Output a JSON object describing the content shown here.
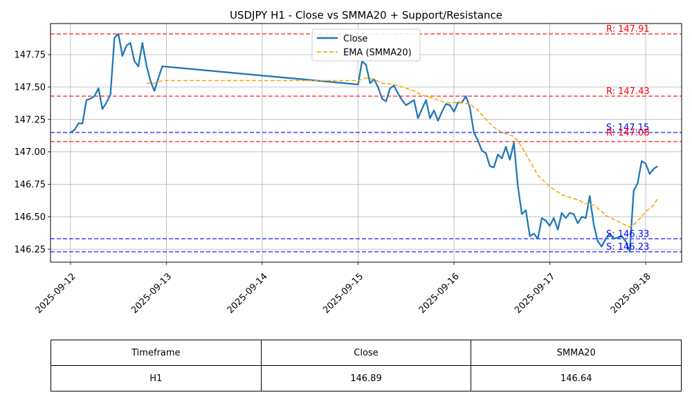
{
  "chart_data": {
    "type": "line",
    "title": "USDJPY H1 - Close vs SMMA20 + Support/Resistance",
    "xlabel": "",
    "ylabel": "",
    "ylim": [
      146.15,
      147.99
    ],
    "xlim": [
      "2025-09-11 19:00",
      "2025-09-18 09:00"
    ],
    "grid": true,
    "legend_position": "top-center",
    "x_ticks": [
      "2025-09-12",
      "2025-09-13",
      "2025-09-14",
      "2025-09-15",
      "2025-09-16",
      "2025-09-17",
      "2025-09-18"
    ],
    "y_ticks": [
      "146.25",
      "146.50",
      "146.75",
      "147.00",
      "147.25",
      "147.50",
      "147.75"
    ],
    "series": [
      {
        "name": "Close",
        "color": "#1f77b4",
        "points": [
          [
            "2025-09-12 00:00",
            147.15
          ],
          [
            "2025-09-12 01:00",
            147.17
          ],
          [
            "2025-09-12 02:00",
            147.22
          ],
          [
            "2025-09-12 03:00",
            147.22
          ],
          [
            "2025-09-12 04:00",
            147.4
          ],
          [
            "2025-09-12 05:00",
            147.41
          ],
          [
            "2025-09-12 06:00",
            147.43
          ],
          [
            "2025-09-12 07:00",
            147.49
          ],
          [
            "2025-09-12 08:00",
            147.33
          ],
          [
            "2025-09-12 09:00",
            147.38
          ],
          [
            "2025-09-12 10:00",
            147.44
          ],
          [
            "2025-09-12 11:00",
            147.88
          ],
          [
            "2025-09-12 12:00",
            147.91
          ],
          [
            "2025-09-12 13:00",
            147.74
          ],
          [
            "2025-09-12 14:00",
            147.82
          ],
          [
            "2025-09-12 15:00",
            147.84
          ],
          [
            "2025-09-12 16:00",
            147.7
          ],
          [
            "2025-09-12 17:00",
            147.66
          ],
          [
            "2025-09-12 18:00",
            147.84
          ],
          [
            "2025-09-12 19:00",
            147.67
          ],
          [
            "2025-09-12 20:00",
            147.55
          ],
          [
            "2025-09-12 21:00",
            147.47
          ],
          [
            "2025-09-12 22:00",
            147.57
          ],
          [
            "2025-09-12 23:00",
            147.66
          ],
          [
            "2025-09-15 00:00",
            147.52
          ],
          [
            "2025-09-15 01:00",
            147.7
          ],
          [
            "2025-09-15 02:00",
            147.67
          ],
          [
            "2025-09-15 03:00",
            147.53
          ],
          [
            "2025-09-15 04:00",
            147.56
          ],
          [
            "2025-09-15 05:00",
            147.5
          ],
          [
            "2025-09-15 06:00",
            147.41
          ],
          [
            "2025-09-15 07:00",
            147.39
          ],
          [
            "2025-09-15 08:00",
            147.49
          ],
          [
            "2025-09-15 09:00",
            147.51
          ],
          [
            "2025-09-15 10:00",
            147.45
          ],
          [
            "2025-09-15 11:00",
            147.4
          ],
          [
            "2025-09-15 12:00",
            147.36
          ],
          [
            "2025-09-15 13:00",
            147.38
          ],
          [
            "2025-09-15 14:00",
            147.4
          ],
          [
            "2025-09-15 15:00",
            147.26
          ],
          [
            "2025-09-15 16:00",
            147.33
          ],
          [
            "2025-09-15 17:00",
            147.4
          ],
          [
            "2025-09-15 18:00",
            147.26
          ],
          [
            "2025-09-15 19:00",
            147.32
          ],
          [
            "2025-09-15 20:00",
            147.24
          ],
          [
            "2025-09-15 21:00",
            147.31
          ],
          [
            "2025-09-15 22:00",
            147.37
          ],
          [
            "2025-09-15 23:00",
            147.36
          ],
          [
            "2025-09-16 00:00",
            147.31
          ],
          [
            "2025-09-16 01:00",
            147.38
          ],
          [
            "2025-09-16 02:00",
            147.38
          ],
          [
            "2025-09-16 03:00",
            147.43
          ],
          [
            "2025-09-16 04:00",
            147.34
          ],
          [
            "2025-09-16 05:00",
            147.15
          ],
          [
            "2025-09-16 06:00",
            147.09
          ],
          [
            "2025-09-16 07:00",
            147.01
          ],
          [
            "2025-09-16 08:00",
            146.99
          ],
          [
            "2025-09-16 09:00",
            146.89
          ],
          [
            "2025-09-16 10:00",
            146.88
          ],
          [
            "2025-09-16 11:00",
            146.98
          ],
          [
            "2025-09-16 12:00",
            146.95
          ],
          [
            "2025-09-16 13:00",
            147.04
          ],
          [
            "2025-09-16 14:00",
            146.94
          ],
          [
            "2025-09-16 15:00",
            147.07
          ],
          [
            "2025-09-16 16:00",
            146.74
          ],
          [
            "2025-09-16 17:00",
            146.52
          ],
          [
            "2025-09-16 18:00",
            146.55
          ],
          [
            "2025-09-16 19:00",
            146.35
          ],
          [
            "2025-09-16 20:00",
            146.37
          ],
          [
            "2025-09-16 21:00",
            146.33
          ],
          [
            "2025-09-16 22:00",
            146.49
          ],
          [
            "2025-09-16 23:00",
            146.47
          ],
          [
            "2025-09-17 00:00",
            146.43
          ],
          [
            "2025-09-17 01:00",
            146.49
          ],
          [
            "2025-09-17 02:00",
            146.4
          ],
          [
            "2025-09-17 03:00",
            146.53
          ],
          [
            "2025-09-17 04:00",
            146.49
          ],
          [
            "2025-09-17 05:00",
            146.53
          ],
          [
            "2025-09-17 06:00",
            146.52
          ],
          [
            "2025-09-17 07:00",
            146.45
          ],
          [
            "2025-09-17 08:00",
            146.5
          ],
          [
            "2025-09-17 09:00",
            146.49
          ],
          [
            "2025-09-17 10:00",
            146.66
          ],
          [
            "2025-09-17 11:00",
            146.44
          ],
          [
            "2025-09-17 12:00",
            146.31
          ],
          [
            "2025-09-17 13:00",
            146.27
          ],
          [
            "2025-09-17 14:00",
            146.33
          ],
          [
            "2025-09-17 15:00",
            146.37
          ],
          [
            "2025-09-17 16:00",
            146.33
          ],
          [
            "2025-09-17 17:00",
            146.34
          ],
          [
            "2025-09-17 18:00",
            146.35
          ],
          [
            "2025-09-17 19:00",
            146.31
          ],
          [
            "2025-09-17 20:00",
            146.23
          ],
          [
            "2025-09-17 21:00",
            146.7
          ],
          [
            "2025-09-17 22:00",
            146.76
          ],
          [
            "2025-09-17 23:00",
            146.93
          ],
          [
            "2025-09-18 00:00",
            146.91
          ],
          [
            "2025-09-18 01:00",
            146.83
          ],
          [
            "2025-09-18 02:00",
            146.87
          ],
          [
            "2025-09-18 03:00",
            146.89
          ]
        ]
      },
      {
        "name": "EMA (SMMA20)",
        "color": "#ffa500",
        "dashed": true,
        "points": [
          [
            "2025-09-12 19:00",
            147.53
          ],
          [
            "2025-09-12 20:00",
            147.53
          ],
          [
            "2025-09-12 21:00",
            147.53
          ],
          [
            "2025-09-12 22:00",
            147.54
          ],
          [
            "2025-09-12 23:00",
            147.55
          ],
          [
            "2025-09-15 00:00",
            147.55
          ],
          [
            "2025-09-15 01:00",
            147.56
          ],
          [
            "2025-09-15 02:00",
            147.57
          ],
          [
            "2025-09-15 04:00",
            147.56
          ],
          [
            "2025-09-15 06:00",
            147.53
          ],
          [
            "2025-09-15 09:00",
            147.52
          ],
          [
            "2025-09-15 12:00",
            147.49
          ],
          [
            "2025-09-15 14:00",
            147.47
          ],
          [
            "2025-09-15 16:00",
            147.44
          ],
          [
            "2025-09-15 18:00",
            147.42
          ],
          [
            "2025-09-15 20:00",
            147.4
          ],
          [
            "2025-09-15 22:00",
            147.38
          ],
          [
            "2025-09-16 00:00",
            147.38
          ],
          [
            "2025-09-16 02:00",
            147.38
          ],
          [
            "2025-09-16 04:00",
            147.37
          ],
          [
            "2025-09-16 06:00",
            147.32
          ],
          [
            "2025-09-16 08:00",
            147.25
          ],
          [
            "2025-09-16 10:00",
            147.19
          ],
          [
            "2025-09-16 12:00",
            147.15
          ],
          [
            "2025-09-16 14:00",
            147.13
          ],
          [
            "2025-09-16 15:00",
            147.12
          ],
          [
            "2025-09-16 17:00",
            147.04
          ],
          [
            "2025-09-16 19:00",
            146.93
          ],
          [
            "2025-09-16 21:00",
            146.82
          ],
          [
            "2025-09-16 23:00",
            146.76
          ],
          [
            "2025-09-17 01:00",
            146.71
          ],
          [
            "2025-09-17 03:00",
            146.67
          ],
          [
            "2025-09-17 05:00",
            146.65
          ],
          [
            "2025-09-17 07:00",
            146.63
          ],
          [
            "2025-09-17 09:00",
            146.6
          ],
          [
            "2025-09-17 11:00",
            146.59
          ],
          [
            "2025-09-17 13:00",
            146.54
          ],
          [
            "2025-09-17 14:00",
            146.51
          ],
          [
            "2025-09-17 16:00",
            146.48
          ],
          [
            "2025-09-17 18:00",
            146.45
          ],
          [
            "2025-09-17 20:00",
            146.42
          ],
          [
            "2025-09-17 21:00",
            146.44
          ],
          [
            "2025-09-17 23:00",
            146.5
          ],
          [
            "2025-09-18 00:00",
            146.54
          ],
          [
            "2025-09-18 02:00",
            146.59
          ],
          [
            "2025-09-18 03:00",
            146.64
          ]
        ]
      }
    ],
    "resistance": [
      {
        "value": 147.91,
        "label": "R: 147.91",
        "color": "#ff0000"
      },
      {
        "value": 147.43,
        "label": "R: 147.43",
        "color": "#ff0000"
      },
      {
        "value": 147.08,
        "label": "",
        "color": "#ff0000"
      }
    ],
    "support": [
      {
        "value": 147.15,
        "label": "S: 147.15",
        "color": "#0000ff"
      },
      {
        "value": 146.33,
        "label": "S: 146.33",
        "color": "#0000ff"
      },
      {
        "value": 146.23,
        "label": "S: 146.23",
        "color": "#0000ff"
      }
    ],
    "overlap_label": {
      "value": 147.11,
      "label": "R: 147.08",
      "color": "#ff0000"
    },
    "table": {
      "headers": [
        "Timeframe",
        "Close",
        "SMMA20"
      ],
      "rows": [
        [
          "H1",
          "146.89",
          "146.64"
        ]
      ]
    }
  }
}
